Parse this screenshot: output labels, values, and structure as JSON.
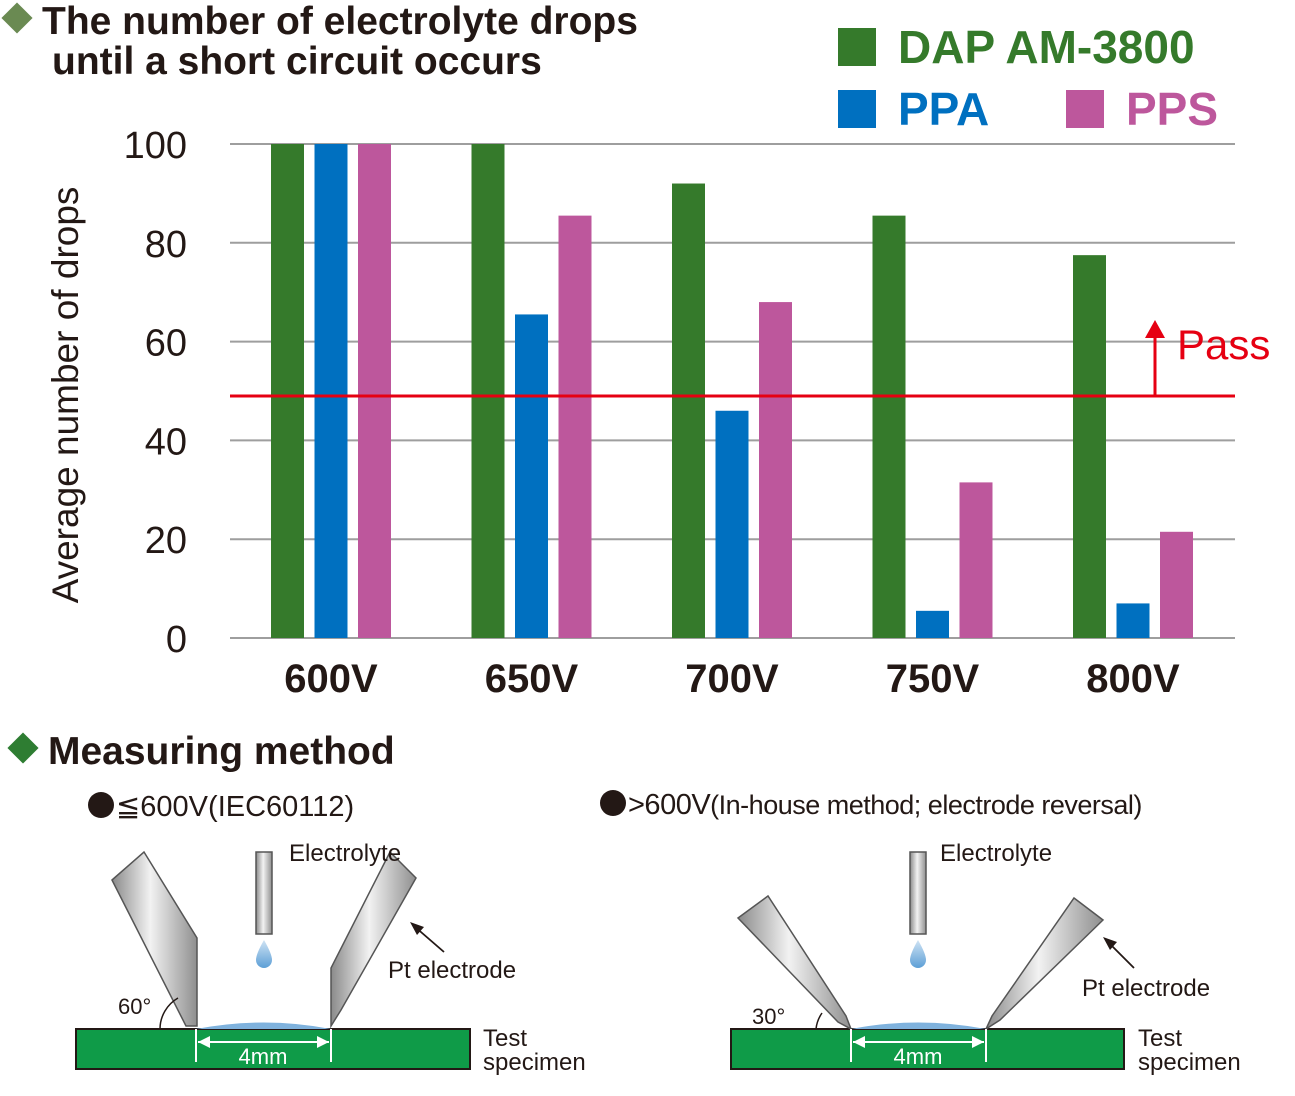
{
  "chart_title": {
    "line1": "The number of electrolyte drops",
    "line2": "until a short circuit occurs"
  },
  "colors": {
    "title_diamond_top": "#6a8a52",
    "title_diamond_bottom": "#2e7d32",
    "dap": "#357a2b",
    "ppa": "#0070c0",
    "pps": "#bd579c",
    "pass_line": "#e60012",
    "grid": "#9e9e9e",
    "specimen": "#0f9b48",
    "droplet": "#7fb2dd"
  },
  "chart_data": {
    "type": "bar",
    "categories": [
      "600V",
      "650V",
      "700V",
      "750V",
      "800V"
    ],
    "series": [
      {
        "name": "DAP AM-3800",
        "values": [
          100,
          100,
          92,
          85.5,
          77.5
        ]
      },
      {
        "name": "PPA",
        "values": [
          100,
          65.5,
          46,
          5.5,
          7
        ]
      },
      {
        "name": "PPS",
        "values": [
          100,
          85.5,
          68,
          31.5,
          21.5
        ]
      }
    ],
    "title": "The number of electrolyte drops until a short circuit occurs",
    "xlabel": "",
    "ylabel": "Average number of drops",
    "ylim": [
      0,
      100
    ],
    "yticks": [
      0,
      20,
      40,
      60,
      80,
      100
    ],
    "grid": true,
    "legend": "top-right",
    "threshold": {
      "value": 49,
      "label": "Pass"
    }
  },
  "method": {
    "title": "Measuring method",
    "left": {
      "heading_symbol": "≦600V",
      "heading_detail": "(IEC60112)",
      "electrolyte": "Electrolyte",
      "electrode": "Pt electrode",
      "angle": "60°",
      "gap": "4mm",
      "specimen_line1": "Test",
      "specimen_line2": "specimen"
    },
    "right": {
      "heading_symbol": ">600V",
      "heading_detail": "(In-house method; electrode reversal)",
      "electrolyte": "Electrolyte",
      "electrode": "Pt electrode",
      "angle": "30°",
      "gap": "4mm",
      "specimen_line1": "Test",
      "specimen_line2": "specimen"
    }
  }
}
